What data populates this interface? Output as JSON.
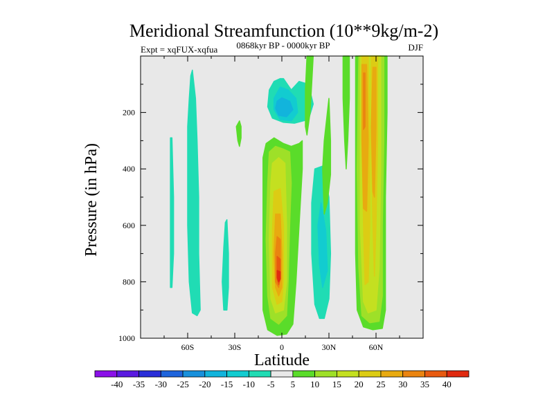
{
  "chart_data": {
    "type": "contour",
    "title": "Meridional Streamfunction (10**9kg/m-2)",
    "left_label": "Expt = xqFUX-xqfua",
    "center_label": "0868kyr BP - 0000kyr BP",
    "right_label": "DJF",
    "xlabel": "Latitude",
    "ylabel": "Pressure (in hPa)",
    "xlim": [
      -90,
      90
    ],
    "ylim": [
      0,
      1000
    ],
    "y_inverted": true,
    "grid": false,
    "x_ticks": [
      {
        "value": -60,
        "label": "60S"
      },
      {
        "value": -30,
        "label": "30S"
      },
      {
        "value": 0,
        "label": "0"
      },
      {
        "value": 30,
        "label": "30N"
      },
      {
        "value": 60,
        "label": "60N"
      }
    ],
    "y_ticks": [
      {
        "value": 200,
        "label": "200"
      },
      {
        "value": 400,
        "label": "400"
      },
      {
        "value": 600,
        "label": "600"
      },
      {
        "value": 800,
        "label": "800"
      },
      {
        "value": 1000,
        "label": "1000"
      }
    ],
    "colorbar": {
      "labels": [
        "-40",
        "-35",
        "-30",
        "-25",
        "-20",
        "-15",
        "-10",
        "-5",
        "5",
        "10",
        "15",
        "20",
        "25",
        "30",
        "35",
        "40"
      ],
      "colors": [
        "#8a10e8",
        "#5a1ae0",
        "#2a2ed8",
        "#1e64dc",
        "#1890dc",
        "#12b4dc",
        "#12ccd0",
        "#20dcb4",
        "#e8e8e8",
        "#5adc2a",
        "#9ee028",
        "#c4e020",
        "#dccc14",
        "#e8aa10",
        "#ea8410",
        "#e85a10",
        "#e02a10"
      ]
    },
    "fields": [
      {
        "level": "-5",
        "color": "#20dcb4",
        "points": [
          [
            -57,
            50
          ],
          [
            -55,
            150
          ],
          [
            -54,
            300
          ],
          [
            -53,
            500
          ],
          [
            -53,
            700
          ],
          [
            -52,
            900
          ],
          [
            -54,
            920
          ],
          [
            -57,
            910
          ],
          [
            -59,
            800
          ],
          [
            -60,
            600
          ],
          [
            -60,
            400
          ],
          [
            -60,
            250
          ],
          [
            -59,
            150
          ],
          [
            -58,
            70
          ]
        ]
      },
      {
        "level": "-5",
        "color": "#20dcb4",
        "points": [
          [
            -70,
            290
          ],
          [
            -69,
            500
          ],
          [
            -69,
            700
          ],
          [
            -70,
            820
          ],
          [
            -71,
            820
          ],
          [
            -71,
            700
          ],
          [
            -71,
            500
          ],
          [
            -71,
            290
          ]
        ]
      },
      {
        "level": "-5",
        "color": "#20dcb4",
        "points": [
          [
            -35,
            580
          ],
          [
            -34,
            700
          ],
          [
            -34,
            820
          ],
          [
            -35,
            900
          ],
          [
            -37,
            900
          ],
          [
            -38,
            800
          ],
          [
            -37,
            680
          ],
          [
            -36,
            590
          ]
        ]
      },
      {
        "level": "-5",
        "color": "#20dcb4",
        "points": [
          [
            -1,
            80
          ],
          [
            1,
            80
          ],
          [
            6,
            120
          ],
          [
            11,
            90
          ],
          [
            17,
            100
          ],
          [
            20,
            170
          ],
          [
            17,
            225
          ],
          [
            8,
            238
          ],
          [
            1,
            235
          ],
          [
            -6,
            220
          ],
          [
            -9,
            180
          ],
          [
            -8,
            120
          ],
          [
            -5,
            90
          ]
        ]
      },
      {
        "level": "-5",
        "color": "#20dcb4",
        "points": [
          [
            21,
            400
          ],
          [
            26,
            390
          ],
          [
            30,
            500
          ],
          [
            31,
            700
          ],
          [
            30,
            860
          ],
          [
            27,
            930
          ],
          [
            24,
            930
          ],
          [
            21,
            880
          ],
          [
            19,
            700
          ],
          [
            19,
            520
          ]
        ]
      },
      {
        "level": "-10",
        "color": "#12ccd0",
        "points": [
          [
            -3,
            130
          ],
          [
            -1,
            110
          ],
          [
            4,
            120
          ],
          [
            9,
            150
          ],
          [
            10,
            200
          ],
          [
            6,
            230
          ],
          [
            -1,
            225
          ],
          [
            -5,
            190
          ],
          [
            -5,
            150
          ]
        ]
      },
      {
        "level": "-10",
        "color": "#12ccd0",
        "points": [
          [
            25,
            520
          ],
          [
            28,
            620
          ],
          [
            29,
            760
          ],
          [
            26,
            820
          ],
          [
            24,
            740
          ],
          [
            23,
            600
          ]
        ]
      },
      {
        "level": "-15",
        "color": "#12b4dc",
        "points": [
          [
            -3,
            160
          ],
          [
            0,
            148
          ],
          [
            5,
            160
          ],
          [
            7,
            190
          ],
          [
            3,
            215
          ],
          [
            -2,
            210
          ],
          [
            -4,
            185
          ]
        ]
      },
      {
        "level": "5",
        "color": "#5adc2a",
        "points": [
          [
            -10,
            310
          ],
          [
            -5,
            290
          ],
          [
            1,
            310
          ],
          [
            6,
            320
          ],
          [
            11,
            310
          ],
          [
            13,
            300
          ],
          [
            13,
            400
          ],
          [
            11,
            600
          ],
          [
            9,
            800
          ],
          [
            7,
            950
          ],
          [
            3,
            985
          ],
          [
            -3,
            990
          ],
          [
            -9,
            970
          ],
          [
            -12,
            900
          ],
          [
            -12,
            700
          ],
          [
            -12,
            500
          ],
          [
            -12,
            360
          ]
        ]
      },
      {
        "level": "5",
        "color": "#5adc2a",
        "points": [
          [
            -27,
            230
          ],
          [
            -26,
            250
          ],
          [
            -26,
            290
          ],
          [
            -27,
            320
          ],
          [
            -28,
            300
          ],
          [
            -29,
            250
          ]
        ]
      },
      {
        "level": "5",
        "color": "#5adc2a",
        "points": [
          [
            16,
            0
          ],
          [
            20,
            0
          ],
          [
            19,
            100
          ],
          [
            18,
            200
          ],
          [
            16,
            280
          ],
          [
            15,
            250
          ],
          [
            15,
            120
          ]
        ]
      },
      {
        "level": "5",
        "color": "#5adc2a",
        "points": [
          [
            26,
            400
          ],
          [
            27,
            300
          ],
          [
            29,
            200
          ],
          [
            30,
            150
          ],
          [
            31,
            300
          ],
          [
            31,
            420
          ],
          [
            29,
            520
          ],
          [
            27,
            560
          ]
        ]
      },
      {
        "level": "5",
        "color": "#5adc2a",
        "points": [
          [
            39,
            0
          ],
          [
            43,
            0
          ],
          [
            43,
            150
          ],
          [
            42,
            300
          ],
          [
            41,
            400
          ],
          [
            40,
            300
          ],
          [
            39,
            150
          ]
        ]
      },
      {
        "level": "5",
        "color": "#5adc2a",
        "points": [
          [
            47,
            0
          ],
          [
            67,
            0
          ],
          [
            67,
            200
          ],
          [
            66,
            500
          ],
          [
            66,
            750
          ],
          [
            66,
            900
          ],
          [
            64,
            965
          ],
          [
            58,
            970
          ],
          [
            52,
            960
          ],
          [
            48,
            900
          ],
          [
            47,
            700
          ],
          [
            47,
            400
          ]
        ]
      },
      {
        "level": "10",
        "color": "#9ee028",
        "points": [
          [
            -8,
            340
          ],
          [
            -4,
            320
          ],
          [
            1,
            330
          ],
          [
            5,
            340
          ],
          [
            6,
            450
          ],
          [
            5,
            600
          ],
          [
            4,
            800
          ],
          [
            3,
            920
          ],
          [
            -2,
            950
          ],
          [
            -7,
            930
          ],
          [
            -9,
            850
          ],
          [
            -10,
            650
          ],
          [
            -9,
            450
          ]
        ]
      },
      {
        "level": "10",
        "color": "#9ee028",
        "points": [
          [
            49,
            0
          ],
          [
            65,
            0
          ],
          [
            65,
            300
          ],
          [
            64,
            600
          ],
          [
            64,
            850
          ],
          [
            62,
            940
          ],
          [
            56,
            945
          ],
          [
            51,
            920
          ],
          [
            49,
            750
          ],
          [
            48,
            400
          ]
        ]
      },
      {
        "level": "15",
        "color": "#c4e020",
        "points": [
          [
            -6,
            380
          ],
          [
            -2,
            360
          ],
          [
            2,
            380
          ],
          [
            3,
            600
          ],
          [
            3,
            800
          ],
          [
            1,
            900
          ],
          [
            -4,
            910
          ],
          [
            -7,
            860
          ],
          [
            -8,
            650
          ],
          [
            -7,
            450
          ]
        ]
      },
      {
        "level": "15",
        "color": "#c4e020",
        "points": [
          [
            50,
            0
          ],
          [
            63,
            0
          ],
          [
            63,
            400
          ],
          [
            62,
            750
          ],
          [
            60,
            900
          ],
          [
            55,
            910
          ],
          [
            52,
            870
          ],
          [
            50,
            600
          ]
        ]
      },
      {
        "level": "20",
        "color": "#dccc14",
        "points": [
          [
            -5,
            480
          ],
          [
            -1,
            470
          ],
          [
            1,
            600
          ],
          [
            1,
            800
          ],
          [
            0,
            870
          ],
          [
            -3,
            880
          ],
          [
            -6,
            820
          ],
          [
            -6,
            620
          ]
        ]
      },
      {
        "level": "20",
        "color": "#dccc14",
        "points": [
          [
            51,
            0
          ],
          [
            55,
            0
          ],
          [
            56,
            300
          ],
          [
            56,
            600
          ],
          [
            55,
            800
          ],
          [
            53,
            810
          ],
          [
            52,
            600
          ],
          [
            51,
            300
          ]
        ]
      },
      {
        "level": "20",
        "color": "#dccc14",
        "points": [
          [
            57,
            0
          ],
          [
            61,
            0
          ],
          [
            61,
            300
          ],
          [
            60,
            600
          ],
          [
            59,
            780
          ],
          [
            58,
            600
          ],
          [
            57,
            300
          ]
        ]
      },
      {
        "level": "25",
        "color": "#e8aa10",
        "points": [
          [
            -4,
            560
          ],
          [
            -1,
            560
          ],
          [
            0,
            700
          ],
          [
            0,
            820
          ],
          [
            -2,
            850
          ],
          [
            -4,
            820
          ],
          [
            -5,
            700
          ]
        ]
      },
      {
        "level": "25",
        "color": "#e8aa10",
        "points": [
          [
            51,
            30
          ],
          [
            54,
            30
          ],
          [
            55,
            300
          ],
          [
            54,
            550
          ],
          [
            52,
            540
          ],
          [
            51,
            300
          ]
        ]
      },
      {
        "level": "25",
        "color": "#e8aa10",
        "points": [
          [
            58,
            40
          ],
          [
            60,
            40
          ],
          [
            60,
            250
          ],
          [
            59,
            500
          ],
          [
            58,
            480
          ],
          [
            57,
            250
          ]
        ]
      },
      {
        "level": "30",
        "color": "#ea8410",
        "points": [
          [
            -3,
            640
          ],
          [
            -1,
            650
          ],
          [
            -1,
            780
          ],
          [
            -2,
            820
          ],
          [
            -4,
            800
          ],
          [
            -4,
            700
          ]
        ]
      },
      {
        "level": "30",
        "color": "#ea8410",
        "points": [
          [
            52,
            60
          ],
          [
            53,
            60
          ],
          [
            53,
            250
          ],
          [
            52,
            260
          ]
        ]
      },
      {
        "level": "35",
        "color": "#e85a10",
        "points": [
          [
            -3,
            710
          ],
          [
            -1,
            720
          ],
          [
            -1,
            790
          ],
          [
            -2,
            810
          ],
          [
            -3,
            790
          ]
        ]
      },
      {
        "level": "40",
        "color": "#e02a10",
        "points": [
          [
            -3,
            760
          ],
          [
            -1,
            765
          ],
          [
            -1,
            790
          ],
          [
            -2,
            800
          ],
          [
            -3,
            785
          ]
        ]
      }
    ]
  }
}
